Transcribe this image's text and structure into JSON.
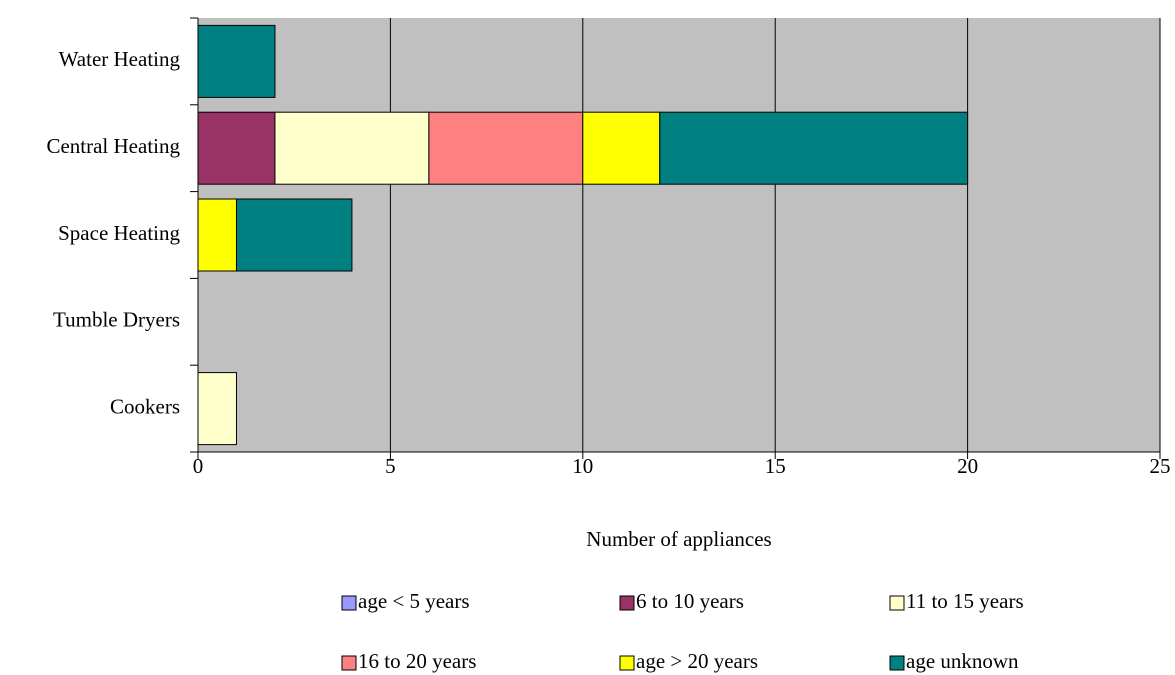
{
  "chart_data": {
    "type": "stacked-barh",
    "x_label": "Number of appliances",
    "categories": [
      "Water Heating",
      "Central Heating",
      "Space Heating",
      "Tumble Dryers",
      "Cookers"
    ],
    "series": [
      {
        "name": "age < 5 years",
        "color": "#9999ff",
        "values": [
          0,
          0,
          0,
          0,
          0
        ]
      },
      {
        "name": "6 to 10 years",
        "color": "#993366",
        "values": [
          0,
          2,
          0,
          0,
          0
        ]
      },
      {
        "name": "11 to 15 years",
        "color": "#ffffcc",
        "values": [
          0,
          4,
          0,
          0,
          1
        ]
      },
      {
        "name": "16 to 20 years",
        "color": "#ff8080",
        "values": [
          0,
          4,
          0,
          0,
          0
        ]
      },
      {
        "name": "age > 20 years",
        "color": "#ffff00",
        "values": [
          0,
          2,
          1,
          0,
          0
        ]
      },
      {
        "name": "age unknown",
        "color": "#008080",
        "values": [
          2,
          8,
          3,
          0,
          0
        ]
      }
    ],
    "xlim": [
      0,
      25
    ],
    "xticks": [
      0,
      5,
      10,
      15,
      20,
      25
    ],
    "grid": true,
    "plot_background": "#c0c0c0",
    "legend": "bottom"
  }
}
